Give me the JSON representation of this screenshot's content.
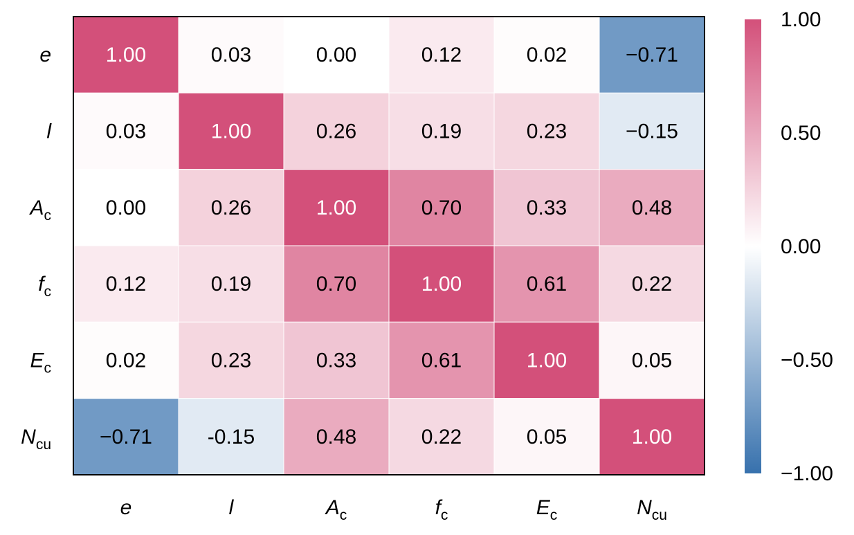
{
  "chart_data": {
    "type": "heatmap",
    "title": "",
    "row_labels": [
      {
        "main": "e",
        "sub": ""
      },
      {
        "main": "l",
        "sub": ""
      },
      {
        "main": "A",
        "sub": "c"
      },
      {
        "main": "f",
        "sub": "c"
      },
      {
        "main": "E",
        "sub": "c"
      },
      {
        "main": "N",
        "sub": "cu"
      }
    ],
    "col_labels": [
      {
        "main": "e",
        "sub": ""
      },
      {
        "main": "l",
        "sub": ""
      },
      {
        "main": "A",
        "sub": "c"
      },
      {
        "main": "f",
        "sub": "c"
      },
      {
        "main": "E",
        "sub": "c"
      },
      {
        "main": "N",
        "sub": "cu"
      }
    ],
    "values": [
      [
        1.0,
        0.03,
        0.0,
        0.12,
        0.02,
        -0.71
      ],
      [
        0.03,
        1.0,
        0.26,
        0.19,
        0.23,
        -0.15
      ],
      [
        0.0,
        0.26,
        1.0,
        0.7,
        0.33,
        0.48
      ],
      [
        0.12,
        0.19,
        0.7,
        1.0,
        0.61,
        0.22
      ],
      [
        0.02,
        0.23,
        0.33,
        0.61,
        1.0,
        0.05
      ],
      [
        -0.71,
        -0.15,
        0.48,
        0.22,
        0.05,
        1.0
      ]
    ],
    "value_labels": [
      [
        "1.00",
        "0.03",
        "0.00",
        "0.12",
        "0.02",
        "−0.71"
      ],
      [
        "0.03",
        "1.00",
        "0.26",
        "0.19",
        "0.23",
        "−0.15"
      ],
      [
        "0.00",
        "0.26",
        "1.00",
        "0.70",
        "0.33",
        "0.48"
      ],
      [
        "0.12",
        "0.19",
        "0.70",
        "1.00",
        "0.61",
        "0.22"
      ],
      [
        "0.02",
        "0.23",
        "0.33",
        "0.61",
        "1.00",
        "0.05"
      ],
      [
        "−0.71",
        "-0.15",
        "0.48",
        "0.22",
        "0.05",
        "1.00"
      ]
    ],
    "colorbar": {
      "range": [
        -1.0,
        1.0
      ],
      "ticks": [
        1.0,
        0.5,
        0.0,
        -0.5,
        -1.0
      ],
      "tick_labels": [
        "1.00",
        "0.50",
        "0.00",
        "−0.50",
        "−1.00"
      ],
      "color_max": "#d3507a",
      "color_mid": "#ffffff",
      "color_min": "#3771ad"
    },
    "grid": false,
    "colorbar_placement": "right"
  }
}
